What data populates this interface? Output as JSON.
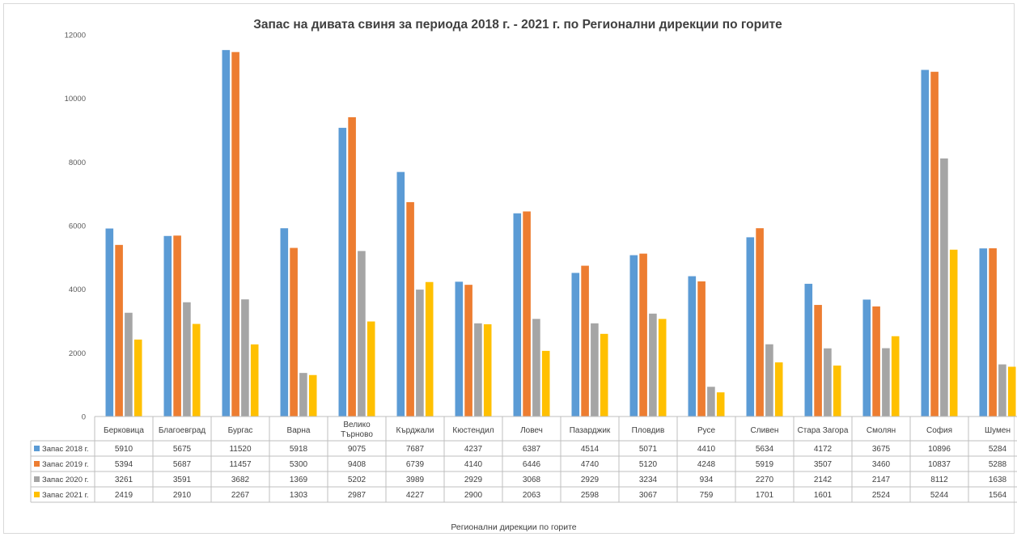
{
  "chart_data": {
    "type": "bar",
    "title": "Запас на дивата свиня за периода 2018 г. - 2021 г. по Регионални дирекции по горите",
    "xlabel": "Регионални дирекции по горите",
    "ylabel": "",
    "ylim": [
      0,
      12000
    ],
    "yticks": [
      0,
      2000,
      4000,
      6000,
      8000,
      10000,
      12000
    ],
    "grid": false,
    "legend": "data-table",
    "categories": [
      "Берковица",
      "Благоевград",
      "Бургас",
      "Варна",
      "Велико Търново",
      "Кърджали",
      "Кюстендил",
      "Ловеч",
      "Пазарджик",
      "Пловдив",
      "Русе",
      "Сливен",
      "Стара Загора",
      "Смолян",
      "София",
      "Шумен"
    ],
    "series": [
      {
        "name": "Запас 2018 г.",
        "color": "#5b9bd5",
        "values": [
          5910,
          5675,
          11520,
          5918,
          9075,
          7687,
          4237,
          6387,
          4514,
          5071,
          4410,
          5634,
          4172,
          3675,
          10896,
          5284
        ]
      },
      {
        "name": "Запас 2019 г.",
        "color": "#ed7d31",
        "values": [
          5394,
          5687,
          11457,
          5300,
          9408,
          6739,
          4140,
          6446,
          4740,
          5120,
          4248,
          5919,
          3507,
          3460,
          10837,
          5288
        ]
      },
      {
        "name": "Запас 2020 г.",
        "color": "#a5a5a5",
        "values": [
          3261,
          3591,
          3682,
          1369,
          5202,
          3989,
          2929,
          3068,
          2929,
          3234,
          934,
          2270,
          2142,
          2147,
          8112,
          1638
        ]
      },
      {
        "name": "Запас 2021 г.",
        "color": "#ffc000",
        "values": [
          2419,
          2910,
          2267,
          1303,
          2987,
          4227,
          2900,
          2063,
          2598,
          3067,
          759,
          1701,
          1601,
          2524,
          5244,
          1564
        ]
      }
    ]
  }
}
